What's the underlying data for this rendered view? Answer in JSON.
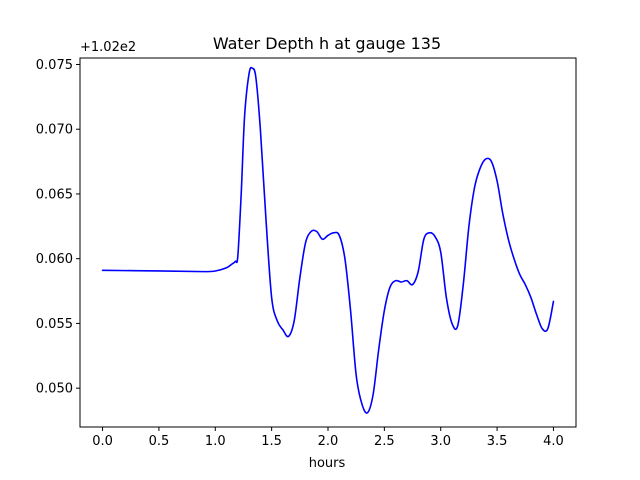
{
  "chart_data": {
    "type": "line",
    "title": "Water Depth h at gauge 135",
    "xlabel": "hours",
    "ylabel": "",
    "y_offset_label": "+1.02e2",
    "xlim": [
      -0.2,
      4.2
    ],
    "ylim": [
      0.047,
      0.0755
    ],
    "x_ticks": [
      0.0,
      0.5,
      1.0,
      1.5,
      2.0,
      2.5,
      3.0,
      3.5,
      4.0
    ],
    "x_tick_labels": [
      "0.0",
      "0.5",
      "1.0",
      "1.5",
      "2.0",
      "2.5",
      "3.0",
      "3.5",
      "4.0"
    ],
    "y_ticks": [
      0.05,
      0.055,
      0.06,
      0.065,
      0.07,
      0.075
    ],
    "y_tick_labels": [
      "0.050",
      "0.055",
      "0.060",
      "0.065",
      "0.070",
      "0.075"
    ],
    "grid": false,
    "series": [
      {
        "color": "#0000ff",
        "x": [
          0.0,
          0.5,
          0.9,
          1.0,
          1.1,
          1.15,
          1.18,
          1.2,
          1.23,
          1.26,
          1.3,
          1.33,
          1.36,
          1.4,
          1.45,
          1.5,
          1.55,
          1.6,
          1.65,
          1.7,
          1.75,
          1.8,
          1.85,
          1.9,
          1.95,
          2.0,
          2.05,
          2.1,
          2.15,
          2.2,
          2.25,
          2.3,
          2.35,
          2.4,
          2.45,
          2.5,
          2.55,
          2.6,
          2.65,
          2.7,
          2.75,
          2.8,
          2.85,
          2.9,
          2.95,
          3.0,
          3.05,
          3.1,
          3.15,
          3.2,
          3.25,
          3.3,
          3.35,
          3.4,
          3.45,
          3.5,
          3.55,
          3.6,
          3.65,
          3.7,
          3.75,
          3.8,
          3.85,
          3.9,
          3.95,
          4.0
        ],
        "y": [
          0.0591,
          0.05905,
          0.059,
          0.05905,
          0.0593,
          0.0596,
          0.0598,
          0.0602,
          0.065,
          0.071,
          0.0743,
          0.0747,
          0.074,
          0.07,
          0.063,
          0.057,
          0.0552,
          0.0545,
          0.054,
          0.0552,
          0.0585,
          0.0612,
          0.0621,
          0.0621,
          0.0615,
          0.0618,
          0.062,
          0.0618,
          0.06,
          0.056,
          0.051,
          0.0488,
          0.0481,
          0.0495,
          0.053,
          0.056,
          0.0578,
          0.0583,
          0.0582,
          0.0583,
          0.058,
          0.059,
          0.0615,
          0.062,
          0.0617,
          0.0605,
          0.057,
          0.055,
          0.0548,
          0.058,
          0.0625,
          0.0655,
          0.067,
          0.0677,
          0.0675,
          0.066,
          0.0635,
          0.0615,
          0.06,
          0.0588,
          0.058,
          0.057,
          0.0557,
          0.0546,
          0.0546,
          0.0567
        ]
      }
    ]
  }
}
